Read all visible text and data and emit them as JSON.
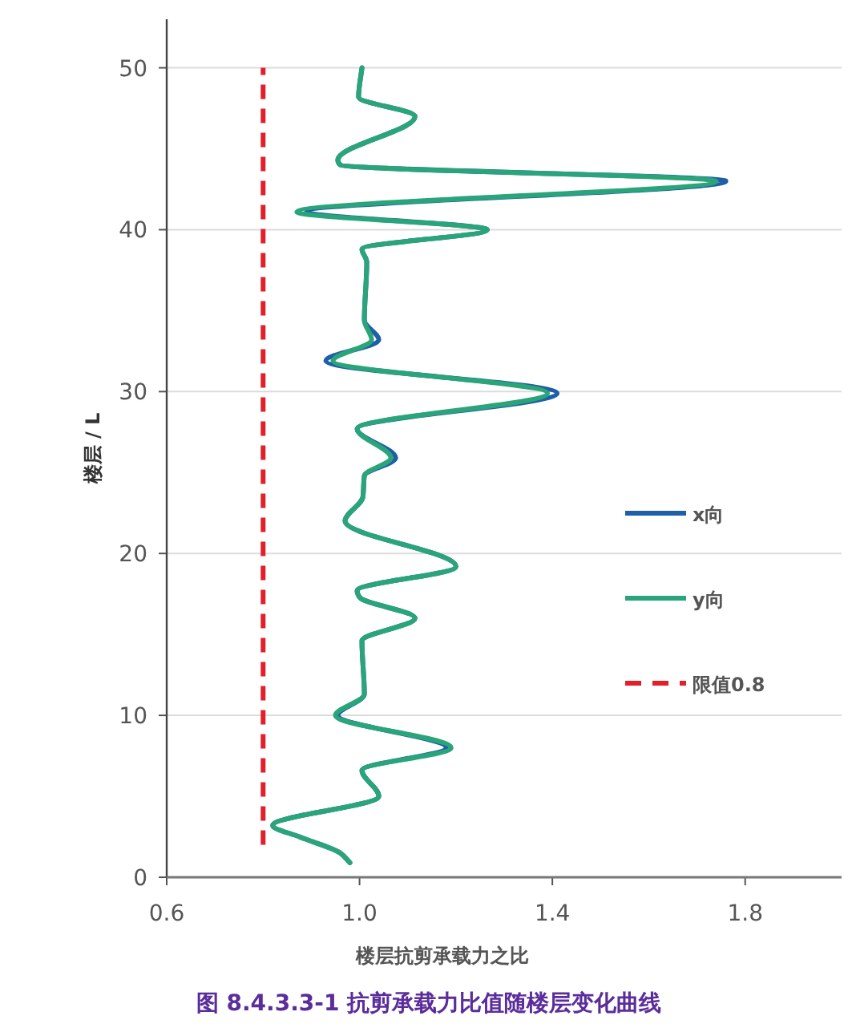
{
  "chart_data": {
    "type": "line",
    "xlabel": "楼层抗剪承载力之比",
    "ylabel": "楼层 / L",
    "xlim": [
      0.6,
      2.0
    ],
    "xticks": [
      {
        "value": 0.6,
        "label": "0.6"
      },
      {
        "value": 1.0,
        "label": "1.0"
      },
      {
        "value": 1.4,
        "label": "1.4"
      },
      {
        "value": 1.8,
        "label": "1.8"
      }
    ],
    "ylim": [
      0,
      53
    ],
    "yticks": [
      0,
      10,
      20,
      30,
      40,
      50
    ],
    "grid": "y",
    "legend": "right",
    "line_style": "solid",
    "marker": "none",
    "series": [
      {
        "name": "x向",
        "color": "#1f5fa8",
        "x": [
          0.98,
          0.96,
          0.875,
          0.82,
          1.04,
          1.005,
          1.18,
          0.955,
          1.01,
          1.005,
          1.115,
          1.0,
          0.995,
          1.2,
          0.97,
          1.007,
          1.01,
          1.075,
          0.995,
          1.41,
          0.93,
          1.04,
          1.01,
          1.015,
          1.005,
          1.265,
          0.89,
          1.76,
          0.96,
          0.955,
          1.115,
          0.998,
          1.005
        ],
        "values": [
          0.9,
          1.5,
          2.5,
          3.2,
          5.0,
          6.6,
          8.0,
          10.0,
          11.3,
          14.6,
          16.0,
          17.3,
          17.7,
          19.2,
          22.0,
          23.5,
          24.8,
          25.9,
          27.7,
          29.9,
          31.9,
          33.2,
          34.4,
          38.0,
          38.8,
          40.0,
          41.1,
          43.0,
          44.0,
          44.3,
          47.0,
          48.2,
          50.0
        ]
      },
      {
        "name": "y向",
        "color": "#2aa57a",
        "x": [
          0.98,
          0.96,
          0.875,
          0.82,
          1.04,
          1.005,
          1.19,
          0.95,
          1.01,
          1.005,
          1.115,
          1.0,
          0.995,
          1.2,
          0.97,
          1.007,
          1.01,
          1.065,
          0.995,
          1.39,
          0.945,
          1.025,
          1.01,
          1.015,
          1.005,
          1.265,
          0.87,
          1.74,
          0.96,
          0.955,
          1.115,
          0.998,
          1.005
        ],
        "values": [
          0.9,
          1.5,
          2.5,
          3.2,
          5.0,
          6.6,
          8.0,
          10.0,
          11.3,
          14.6,
          16.0,
          17.3,
          17.7,
          19.2,
          22.0,
          23.5,
          24.8,
          25.9,
          27.7,
          29.9,
          31.9,
          33.2,
          34.4,
          38.0,
          38.8,
          40.0,
          41.1,
          43.0,
          44.0,
          44.3,
          47.0,
          48.2,
          50.0
        ]
      },
      {
        "name": "限值0.8",
        "color": "#e0202a",
        "line_style": "dashed",
        "x": [
          0.8,
          0.8
        ],
        "values": [
          2,
          50
        ]
      }
    ],
    "annotations": [
      "图 8.4.3.3-1  抗剪承载力比值随楼层变化曲线"
    ]
  }
}
